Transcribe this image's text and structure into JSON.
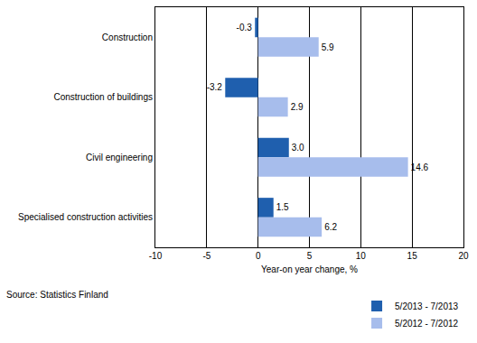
{
  "chart_data": {
    "type": "bar",
    "orientation": "horizontal",
    "categories": [
      "Construction",
      "Construction of buildings",
      "Civil engineering",
      "Specialised construction activities"
    ],
    "series": [
      {
        "name": "5/2013 - 7/2013",
        "color": "#1f5fae",
        "values": [
          -0.3,
          -3.2,
          3.0,
          1.5
        ],
        "value_labels": [
          "-0.3",
          "-3.2",
          "3.0",
          "1.5"
        ]
      },
      {
        "name": "5/2012 - 7/2012",
        "color": "#a7bdec",
        "values": [
          5.9,
          2.9,
          14.6,
          6.2
        ]
      }
    ],
    "x_label": "Year-on year change, %",
    "xlim": [
      -10,
      20
    ],
    "xticks": [
      -10,
      -5,
      0,
      5,
      10,
      15,
      20
    ],
    "grid": true,
    "data_labels": true,
    "legend": "bottom right",
    "annotations": [
      "Source: Statistics Finland"
    ]
  }
}
